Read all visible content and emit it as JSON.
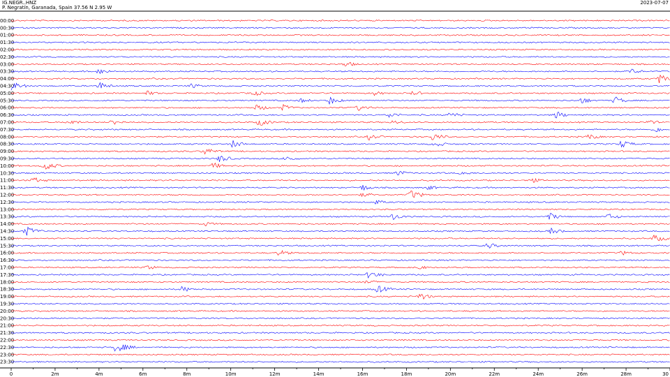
{
  "header": {
    "station": "IG.NEGR..HNZ",
    "location": "P. Negratín, Garanada, Spain  37.56 N 2.95 W",
    "date": "2023-07-07"
  },
  "colors": {
    "red": "#ff0000",
    "blue": "#0000ff",
    "axis": "#000000"
  },
  "chart_data": {
    "type": "line",
    "title": "",
    "xlabel": "",
    "ylabel": "",
    "xlim": [
      0,
      30
    ],
    "x_unit": "minutes",
    "x_ticks": [
      "0",
      "2m",
      "4m",
      "6m",
      "8m",
      "10m",
      "12m",
      "14m",
      "16m",
      "18m",
      "20m",
      "22m",
      "24m",
      "26m",
      "28m",
      "30"
    ],
    "row_labels": [
      "00:00",
      "00:30",
      "01:00",
      "01:30",
      "02:00",
      "02:30",
      "03:00",
      "03:30",
      "04:00",
      "04:30",
      "05:00",
      "05:30",
      "06:00",
      "06:30",
      "07:00",
      "07:30",
      "08:00",
      "08:30",
      "09:00",
      "09:30",
      "10:00",
      "10:30",
      "11:00",
      "11:30",
      "12:00",
      "12:30",
      "13:00",
      "13:30",
      "14:00",
      "14:30",
      "15:00",
      "15:30",
      "16:00",
      "16:30",
      "17:00",
      "17:30",
      "18:00",
      "18:30",
      "19:00",
      "19:30",
      "20:00",
      "20:30",
      "21:00",
      "21:30",
      "22:00",
      "22:30",
      "23:00",
      "23:30"
    ],
    "row_colors": [
      "red",
      "blue"
    ],
    "events": [
      {
        "row": "03:00",
        "t": 15.2,
        "amp": 4
      },
      {
        "row": "03:30",
        "t": 4.0,
        "amp": 4
      },
      {
        "row": "03:30",
        "t": 28.2,
        "amp": 4
      },
      {
        "row": "04:00",
        "t": 29.5,
        "amp": 6
      },
      {
        "row": "04:30",
        "t": 0.0,
        "amp": 6
      },
      {
        "row": "04:30",
        "t": 4.0,
        "amp": 5
      },
      {
        "row": "04:30",
        "t": 8.2,
        "amp": 3
      },
      {
        "row": "05:00",
        "t": 6.2,
        "amp": 3
      },
      {
        "row": "05:00",
        "t": 11.0,
        "amp": 4
      },
      {
        "row": "05:00",
        "t": 16.5,
        "amp": 3
      },
      {
        "row": "05:00",
        "t": 18.3,
        "amp": 3
      },
      {
        "row": "05:30",
        "t": 13.2,
        "amp": 3
      },
      {
        "row": "05:30",
        "t": 14.5,
        "amp": 5
      },
      {
        "row": "05:30",
        "t": 26.0,
        "amp": 4
      },
      {
        "row": "05:30",
        "t": 27.5,
        "amp": 5
      },
      {
        "row": "06:00",
        "t": 11.2,
        "amp": 4
      },
      {
        "row": "06:00",
        "t": 12.4,
        "amp": 4
      },
      {
        "row": "06:00",
        "t": 15.8,
        "amp": 4
      },
      {
        "row": "06:30",
        "t": 17.2,
        "amp": 4
      },
      {
        "row": "06:30",
        "t": 20.0,
        "amp": 4
      },
      {
        "row": "06:30",
        "t": 24.8,
        "amp": 5
      },
      {
        "row": "07:00",
        "t": 2.6,
        "amp": 4
      },
      {
        "row": "07:00",
        "t": 4.6,
        "amp": 4
      },
      {
        "row": "07:00",
        "t": 11.3,
        "amp": 5
      },
      {
        "row": "07:00",
        "t": 17.4,
        "amp": 3
      },
      {
        "row": "07:00",
        "t": 29.0,
        "amp": 3
      },
      {
        "row": "07:30",
        "t": 29.3,
        "amp": 4
      },
      {
        "row": "08:00",
        "t": 16.3,
        "amp": 4
      },
      {
        "row": "08:00",
        "t": 19.2,
        "amp": 5
      },
      {
        "row": "08:00",
        "t": 26.3,
        "amp": 4
      },
      {
        "row": "08:30",
        "t": 10.1,
        "amp": 5
      },
      {
        "row": "08:30",
        "t": 19.3,
        "amp": 4
      },
      {
        "row": "08:30",
        "t": 27.8,
        "amp": 5
      },
      {
        "row": "09:00",
        "t": 8.8,
        "amp": 5
      },
      {
        "row": "09:30",
        "t": 9.5,
        "amp": 5
      },
      {
        "row": "09:30",
        "t": 12.5,
        "amp": 4
      },
      {
        "row": "10:00",
        "t": 1.5,
        "amp": 6
      },
      {
        "row": "10:00",
        "t": 9.2,
        "amp": 4
      },
      {
        "row": "10:30",
        "t": 17.6,
        "amp": 4
      },
      {
        "row": "10:30",
        "t": 20.5,
        "amp": 3
      },
      {
        "row": "11:00",
        "t": 1.0,
        "amp": 4
      },
      {
        "row": "11:00",
        "t": 23.6,
        "amp": 4
      },
      {
        "row": "11:30",
        "t": 16.0,
        "amp": 4
      },
      {
        "row": "11:30",
        "t": 19.0,
        "amp": 3
      },
      {
        "row": "12:00",
        "t": 18.2,
        "amp": 6
      },
      {
        "row": "12:00",
        "t": 16.0,
        "amp": 3
      },
      {
        "row": "12:30",
        "t": 16.6,
        "amp": 3
      },
      {
        "row": "13:30",
        "t": 17.3,
        "amp": 5
      },
      {
        "row": "13:30",
        "t": 24.5,
        "amp": 5
      },
      {
        "row": "13:30",
        "t": 27.2,
        "amp": 4
      },
      {
        "row": "14:00",
        "t": 8.8,
        "amp": 3
      },
      {
        "row": "14:30",
        "t": 0.7,
        "amp": 6
      },
      {
        "row": "14:30",
        "t": 24.6,
        "amp": 4
      },
      {
        "row": "15:00",
        "t": 29.3,
        "amp": 5
      },
      {
        "row": "15:30",
        "t": 21.7,
        "amp": 4
      },
      {
        "row": "16:00",
        "t": 12.2,
        "amp": 4
      },
      {
        "row": "16:00",
        "t": 27.8,
        "amp": 3
      },
      {
        "row": "17:00",
        "t": 6.2,
        "amp": 3
      },
      {
        "row": "17:00",
        "t": 18.5,
        "amp": 3
      },
      {
        "row": "17:30",
        "t": 16.3,
        "amp": 5
      },
      {
        "row": "18:00",
        "t": 16.2,
        "amp": 3
      },
      {
        "row": "18:30",
        "t": 7.8,
        "amp": 4
      },
      {
        "row": "18:30",
        "t": 16.7,
        "amp": 5
      },
      {
        "row": "19:00",
        "t": 18.6,
        "amp": 5
      },
      {
        "row": "22:30",
        "t": 4.8,
        "amp": 7
      }
    ]
  }
}
